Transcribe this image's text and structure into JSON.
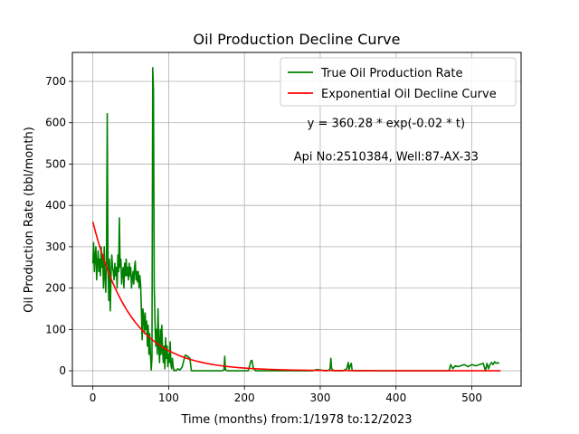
{
  "chart_data": {
    "type": "line",
    "title": "Oil Production Decline Curve",
    "xlabel": "Time (months) from:1/1978 to:12/2023",
    "ylabel": "Oil Production Rate (bbl/month)",
    "xlim": [
      -27,
      565
    ],
    "ylim": [
      -37,
      770
    ],
    "xticks": [
      0,
      100,
      200,
      300,
      400,
      500
    ],
    "yticks": [
      0,
      100,
      200,
      300,
      400,
      500,
      600,
      700
    ],
    "grid": true,
    "legend_position": "upper right",
    "annotations": [
      {
        "text": "y = 360.28 * exp(-0.02 * t)",
        "x": 387,
        "y": 600
      },
      {
        "text": "Api No:2510384, Well:87-AX-33",
        "x": 387,
        "y": 520
      }
    ],
    "series": [
      {
        "name": "True Oil Production Rate",
        "color": "#008000",
        "points": [
          [
            0,
            260
          ],
          [
            1,
            310
          ],
          [
            2,
            240
          ],
          [
            3,
            280
          ],
          [
            4,
            300
          ],
          [
            5,
            220
          ],
          [
            6,
            260
          ],
          [
            7,
            290
          ],
          [
            8,
            240
          ],
          [
            9,
            270
          ],
          [
            10,
            230
          ],
          [
            11,
            300
          ],
          [
            12,
            250
          ],
          [
            13,
            280
          ],
          [
            14,
            200
          ],
          [
            15,
            300
          ],
          [
            16,
            230
          ],
          [
            17,
            190
          ],
          [
            18,
            260
          ],
          [
            19,
            622
          ],
          [
            20,
            260
          ],
          [
            21,
            170
          ],
          [
            22,
            270
          ],
          [
            23,
            145
          ],
          [
            24,
            230
          ],
          [
            25,
            280
          ],
          [
            26,
            250
          ],
          [
            27,
            240
          ],
          [
            28,
            220
          ],
          [
            29,
            260
          ],
          [
            30,
            230
          ],
          [
            31,
            250
          ],
          [
            32,
            200
          ],
          [
            33,
            280
          ],
          [
            34,
            240
          ],
          [
            35,
            370
          ],
          [
            36,
            250
          ],
          [
            37,
            270
          ],
          [
            38,
            210
          ],
          [
            39,
            240
          ],
          [
            40,
            250
          ],
          [
            41,
            200
          ],
          [
            42,
            260
          ],
          [
            43,
            230
          ],
          [
            44,
            270
          ],
          [
            45,
            230
          ],
          [
            46,
            250
          ],
          [
            47,
            220
          ],
          [
            48,
            260
          ],
          [
            49,
            230
          ],
          [
            50,
            250
          ],
          [
            51,
            200
          ],
          [
            52,
            220
          ],
          [
            53,
            240
          ],
          [
            54,
            210
          ],
          [
            55,
            250
          ],
          [
            56,
            265
          ],
          [
            57,
            220
          ],
          [
            58,
            240
          ],
          [
            59,
            215
          ],
          [
            60,
            240
          ],
          [
            61,
            200
          ],
          [
            62,
            230
          ],
          [
            63,
            210
          ],
          [
            64,
            150
          ],
          [
            65,
            75
          ],
          [
            66,
            150
          ],
          [
            67,
            130
          ],
          [
            68,
            90
          ],
          [
            69,
            140
          ],
          [
            70,
            100
          ],
          [
            71,
            120
          ],
          [
            72,
            60
          ],
          [
            73,
            110
          ],
          [
            74,
            40
          ],
          [
            75,
            90
          ],
          [
            76,
            40
          ],
          [
            77,
            2
          ],
          [
            78,
            30
          ],
          [
            79,
            733
          ],
          [
            80,
            680
          ],
          [
            81,
            200
          ],
          [
            82,
            120
          ],
          [
            83,
            60
          ],
          [
            84,
            100
          ],
          [
            85,
            40
          ],
          [
            86,
            150
          ],
          [
            87,
            60
          ],
          [
            88,
            20
          ],
          [
            89,
            100
          ],
          [
            90,
            40
          ],
          [
            91,
            110
          ],
          [
            92,
            50
          ],
          [
            93,
            20
          ],
          [
            94,
            60
          ],
          [
            95,
            5
          ],
          [
            96,
            80
          ],
          [
            97,
            30
          ],
          [
            98,
            60
          ],
          [
            99,
            10
          ],
          [
            100,
            40
          ],
          [
            101,
            20
          ],
          [
            102,
            70
          ],
          [
            103,
            15
          ],
          [
            104,
            5
          ],
          [
            105,
            30
          ],
          [
            106,
            10
          ],
          [
            107,
            0
          ],
          [
            108,
            2
          ],
          [
            110,
            0
          ],
          [
            112,
            5
          ],
          [
            115,
            2
          ],
          [
            118,
            10
          ],
          [
            120,
            25
          ],
          [
            122,
            38
          ],
          [
            125,
            35
          ],
          [
            128,
            30
          ],
          [
            130,
            0
          ],
          [
            140,
            0
          ],
          [
            150,
            0
          ],
          [
            160,
            0
          ],
          [
            170,
            0
          ],
          [
            173,
            2
          ],
          [
            174,
            35
          ],
          [
            175,
            2
          ],
          [
            178,
            0
          ],
          [
            190,
            0
          ],
          [
            200,
            0
          ],
          [
            205,
            0
          ],
          [
            208,
            20
          ],
          [
            209,
            25
          ],
          [
            210,
            25
          ],
          [
            212,
            5
          ],
          [
            215,
            0
          ],
          [
            230,
            0
          ],
          [
            250,
            0
          ],
          [
            270,
            0
          ],
          [
            280,
            0
          ],
          [
            290,
            0
          ],
          [
            295,
            3
          ],
          [
            300,
            2
          ],
          [
            305,
            0
          ],
          [
            310,
            0
          ],
          [
            313,
            5
          ],
          [
            314,
            30
          ],
          [
            315,
            5
          ],
          [
            318,
            0
          ],
          [
            325,
            0
          ],
          [
            330,
            0
          ],
          [
            335,
            5
          ],
          [
            337,
            20
          ],
          [
            338,
            2
          ],
          [
            340,
            15
          ],
          [
            341,
            18
          ],
          [
            342,
            2
          ],
          [
            344,
            0
          ],
          [
            350,
            0
          ],
          [
            360,
            0
          ],
          [
            380,
            0
          ],
          [
            400,
            0
          ],
          [
            420,
            0
          ],
          [
            440,
            0
          ],
          [
            460,
            0
          ],
          [
            470,
            0
          ],
          [
            472,
            15
          ],
          [
            475,
            5
          ],
          [
            478,
            12
          ],
          [
            482,
            10
          ],
          [
            485,
            12
          ],
          [
            490,
            15
          ],
          [
            495,
            10
          ],
          [
            500,
            15
          ],
          [
            505,
            12
          ],
          [
            510,
            15
          ],
          [
            515,
            18
          ],
          [
            518,
            0
          ],
          [
            520,
            18
          ],
          [
            522,
            5
          ],
          [
            524,
            15
          ],
          [
            526,
            20
          ],
          [
            528,
            15
          ],
          [
            530,
            22
          ],
          [
            532,
            18
          ],
          [
            534,
            20
          ],
          [
            536,
            17
          ]
        ]
      },
      {
        "name": "Exponential Oil Decline Curve",
        "color": "#ff0000",
        "model": {
          "a": 360.28,
          "b": 0.02,
          "t_start": 0,
          "t_end": 538
        }
      }
    ]
  }
}
